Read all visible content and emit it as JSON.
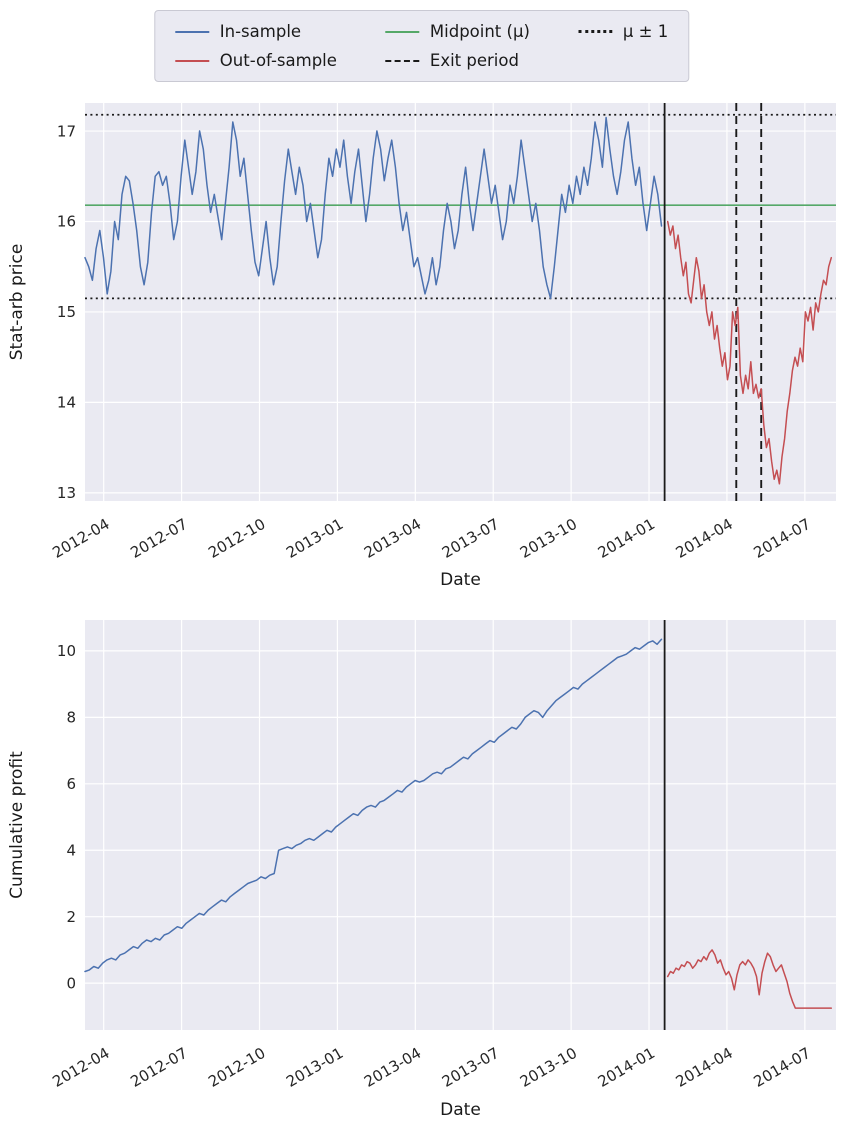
{
  "colors": {
    "axes_bg": "#eaeaf2",
    "grid": "#ffffff",
    "in_sample": "#4c72b0",
    "out_of_sample": "#c44e52",
    "midpoint": "#55a868",
    "black": "#1a1a1a",
    "tick_text": "#262626",
    "label_text": "#1a1a1a"
  },
  "legend": {
    "entries": [
      {
        "label": "In-sample",
        "color": "#4c72b0",
        "style": "solid"
      },
      {
        "label": "Out-of-sample",
        "color": "#c44e52",
        "style": "solid"
      },
      {
        "label": "Midpoint (μ)",
        "color": "#55a868",
        "style": "solid"
      },
      {
        "label": "Exit period",
        "color": "#1a1a1a",
        "style": "dashed"
      },
      {
        "label": "μ ± 1",
        "color": "#1a1a1a",
        "style": "dotted"
      }
    ]
  },
  "chart_data": [
    {
      "type": "line",
      "title": "",
      "xlabel": "Date",
      "ylabel": "Stat-arb price",
      "xlim": [
        2012.19,
        2014.6
      ],
      "ylim": [
        12.91,
        17.31
      ],
      "yticks": [
        13,
        14,
        15,
        16,
        17
      ],
      "xticks": {
        "values": [
          2012.25,
          2012.5,
          2012.75,
          2013.0,
          2013.25,
          2013.5,
          2013.75,
          2014.0,
          2014.25,
          2014.5
        ],
        "labels": [
          "2012-04",
          "2012-07",
          "2012-10",
          "2013-01",
          "2013-04",
          "2013-07",
          "2013-10",
          "2014-01",
          "2014-04",
          "2014-07"
        ]
      },
      "hlines": [
        {
          "y": 16.18,
          "color": "#55a868",
          "style": "solid",
          "width": 1.6,
          "name": "midpoint-line"
        },
        {
          "y": 17.18,
          "color": "#1a1a1a",
          "style": "dotted",
          "width": 1.7,
          "name": "upper-band-line"
        },
        {
          "y": 15.15,
          "color": "#1a1a1a",
          "style": "dotted",
          "width": 1.7,
          "name": "lower-band-line"
        }
      ],
      "vlines": [
        {
          "x": 2014.05,
          "color": "#1a1a1a",
          "style": "solid",
          "width": 1.8,
          "name": "train-test-split-line"
        },
        {
          "x": 2014.28,
          "color": "#1a1a1a",
          "style": "dashed",
          "width": 1.9,
          "name": "exit-period-start-line"
        },
        {
          "x": 2014.36,
          "color": "#1a1a1a",
          "style": "dashed",
          "width": 1.9,
          "name": "exit-period-end-line"
        }
      ],
      "series": [
        {
          "name": "In-sample",
          "color": "#4c72b0",
          "x0": 2012.19,
          "x1": 2014.04,
          "y": [
            15.6,
            15.5,
            15.35,
            15.7,
            15.9,
            15.6,
            15.2,
            15.45,
            16.0,
            15.8,
            16.3,
            16.5,
            16.45,
            16.2,
            15.9,
            15.5,
            15.3,
            15.55,
            16.1,
            16.5,
            16.55,
            16.4,
            16.5,
            16.2,
            15.8,
            16.0,
            16.5,
            16.9,
            16.6,
            16.3,
            16.55,
            17.0,
            16.8,
            16.4,
            16.1,
            16.3,
            16.05,
            15.8,
            16.2,
            16.6,
            17.1,
            16.9,
            16.5,
            16.7,
            16.3,
            15.9,
            15.55,
            15.4,
            15.7,
            16.0,
            15.6,
            15.3,
            15.5,
            16.0,
            16.45,
            16.8,
            16.55,
            16.3,
            16.6,
            16.4,
            16.0,
            16.2,
            15.9,
            15.6,
            15.8,
            16.3,
            16.7,
            16.5,
            16.8,
            16.6,
            16.9,
            16.5,
            16.2,
            16.55,
            16.8,
            16.4,
            16.0,
            16.3,
            16.7,
            17.0,
            16.8,
            16.45,
            16.7,
            16.9,
            16.6,
            16.2,
            15.9,
            16.1,
            15.8,
            15.5,
            15.6,
            15.4,
            15.2,
            15.35,
            15.6,
            15.3,
            15.5,
            15.9,
            16.2,
            16.0,
            15.7,
            15.9,
            16.3,
            16.6,
            16.2,
            15.9,
            16.2,
            16.5,
            16.8,
            16.5,
            16.2,
            16.4,
            16.1,
            15.8,
            16.0,
            16.4,
            16.2,
            16.5,
            16.9,
            16.6,
            16.3,
            16.0,
            16.2,
            15.9,
            15.5,
            15.3,
            15.15,
            15.5,
            15.9,
            16.3,
            16.1,
            16.4,
            16.2,
            16.5,
            16.3,
            16.6,
            16.4,
            16.7,
            17.1,
            16.9,
            16.6,
            17.15,
            16.8,
            16.5,
            16.3,
            16.55,
            16.9,
            17.1,
            16.7,
            16.4,
            16.6,
            16.2,
            15.9,
            16.2,
            16.5,
            16.3,
            15.95
          ]
        },
        {
          "name": "Out-of-sample",
          "color": "#c44e52",
          "x0": 2014.06,
          "x1": 2014.585,
          "y": [
            16.0,
            15.85,
            15.95,
            15.7,
            15.85,
            15.6,
            15.4,
            15.55,
            15.2,
            15.1,
            15.35,
            15.6,
            15.45,
            15.15,
            15.3,
            15.0,
            14.85,
            15.0,
            14.7,
            14.85,
            14.6,
            14.4,
            14.55,
            14.25,
            14.4,
            15.0,
            14.85,
            15.05,
            14.3,
            14.1,
            14.3,
            14.15,
            14.45,
            14.1,
            14.2,
            14.05,
            14.15,
            13.75,
            13.5,
            13.6,
            13.35,
            13.15,
            13.25,
            13.1,
            13.4,
            13.6,
            13.9,
            14.1,
            14.35,
            14.5,
            14.4,
            14.6,
            14.45,
            15.0,
            14.9,
            15.05,
            14.8,
            15.1,
            15.0,
            15.2,
            15.35,
            15.3,
            15.5,
            15.6
          ]
        }
      ]
    },
    {
      "type": "line",
      "title": "",
      "xlabel": "Date",
      "ylabel": "Cumulative profit",
      "xlim": [
        2012.19,
        2014.6
      ],
      "ylim": [
        -1.41,
        10.93
      ],
      "yticks": [
        0,
        2,
        4,
        6,
        8,
        10
      ],
      "xticks": {
        "values": [
          2012.25,
          2012.5,
          2012.75,
          2013.0,
          2013.25,
          2013.5,
          2013.75,
          2014.0,
          2014.25,
          2014.5
        ],
        "labels": [
          "2012-04",
          "2012-07",
          "2012-10",
          "2013-01",
          "2013-04",
          "2013-07",
          "2013-10",
          "2014-01",
          "2014-04",
          "2014-07"
        ]
      },
      "hlines": [],
      "vlines": [
        {
          "x": 2014.05,
          "color": "#1a1a1a",
          "style": "solid",
          "width": 1.8,
          "name": "train-test-split-line"
        }
      ],
      "series": [
        {
          "name": "In-sample",
          "color": "#4c72b0",
          "x0": 2012.19,
          "x1": 2014.04,
          "y": [
            0.35,
            0.4,
            0.5,
            0.45,
            0.6,
            0.7,
            0.75,
            0.7,
            0.85,
            0.9,
            1.0,
            1.1,
            1.05,
            1.2,
            1.3,
            1.25,
            1.35,
            1.3,
            1.45,
            1.5,
            1.6,
            1.7,
            1.65,
            1.8,
            1.9,
            2.0,
            2.1,
            2.05,
            2.2,
            2.3,
            2.4,
            2.5,
            2.45,
            2.6,
            2.7,
            2.8,
            2.9,
            3.0,
            3.05,
            3.1,
            3.2,
            3.15,
            3.25,
            3.3,
            4.0,
            4.05,
            4.1,
            4.05,
            4.15,
            4.2,
            4.3,
            4.35,
            4.3,
            4.4,
            4.5,
            4.6,
            4.55,
            4.7,
            4.8,
            4.9,
            5.0,
            5.1,
            5.05,
            5.2,
            5.3,
            5.35,
            5.3,
            5.45,
            5.5,
            5.6,
            5.7,
            5.8,
            5.75,
            5.9,
            6.0,
            6.1,
            6.05,
            6.1,
            6.2,
            6.3,
            6.35,
            6.3,
            6.45,
            6.5,
            6.6,
            6.7,
            6.8,
            6.75,
            6.9,
            7.0,
            7.1,
            7.2,
            7.3,
            7.25,
            7.4,
            7.5,
            7.6,
            7.7,
            7.65,
            7.8,
            8.0,
            8.1,
            8.2,
            8.15,
            8.0,
            8.2,
            8.35,
            8.5,
            8.6,
            8.7,
            8.8,
            8.9,
            8.85,
            9.0,
            9.1,
            9.2,
            9.3,
            9.4,
            9.5,
            9.6,
            9.7,
            9.8,
            9.85,
            9.9,
            10.0,
            10.1,
            10.05,
            10.15,
            10.25,
            10.3,
            10.2,
            10.35
          ]
        },
        {
          "name": "Out-of-sample",
          "color": "#c44e52",
          "x0": 2014.06,
          "x1": 2014.585,
          "y": [
            0.2,
            0.35,
            0.3,
            0.45,
            0.4,
            0.55,
            0.5,
            0.65,
            0.6,
            0.45,
            0.55,
            0.7,
            0.65,
            0.8,
            0.7,
            0.9,
            1.0,
            0.85,
            0.6,
            0.7,
            0.45,
            0.25,
            0.35,
            0.15,
            -0.2,
            0.25,
            0.55,
            0.65,
            0.55,
            0.7,
            0.6,
            0.45,
            0.2,
            -0.35,
            0.3,
            0.65,
            0.9,
            0.8,
            0.55,
            0.35,
            0.45,
            0.55,
            0.3,
            0.05,
            -0.3,
            -0.55,
            -0.75,
            -0.75,
            -0.75,
            -0.75,
            -0.75,
            -0.75,
            -0.75,
            -0.75,
            -0.75,
            -0.75,
            -0.75,
            -0.75,
            -0.75,
            -0.75
          ]
        }
      ]
    }
  ]
}
